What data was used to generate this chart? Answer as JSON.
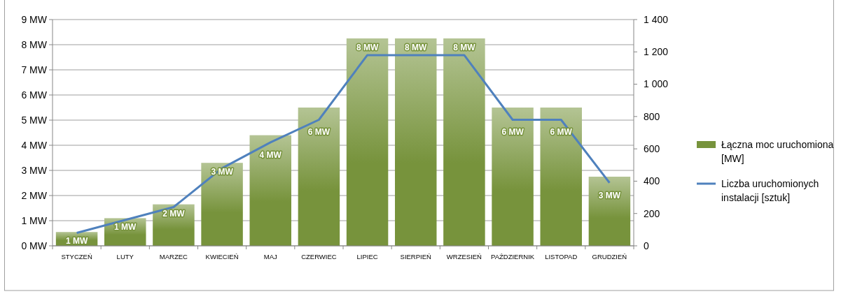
{
  "chart_data": {
    "type": "bar",
    "categories": [
      "STYCZEŃ",
      "LUTY",
      "MARZEC",
      "KWIECIEŃ",
      "MAJ",
      "CZERWIEC",
      "LIPIEC",
      "SIERPIEŃ",
      "WRZESIEŃ",
      "PAŹDZIERNIK",
      "LISTOPAD",
      "GRUDZIEŃ"
    ],
    "series": [
      {
        "name": "Łączna moc uruchomiona [MW]",
        "color": "#77933c",
        "values": [
          0.55,
          1.1,
          1.65,
          3.3,
          4.4,
          5.5,
          8.25,
          8.25,
          8.25,
          5.5,
          5.5,
          2.75
        ],
        "value_labels": [
          "1 MW",
          "1 MW",
          "2 MW",
          "3 MW",
          "4 MW",
          "6 MW",
          "8 MW",
          "8 MW",
          "8 MW",
          "6 MW",
          "6 MW",
          "3 MW"
        ]
      },
      {
        "name": "Liczba uruchomionych instalacji [sztuk]",
        "type": "line",
        "axis": "y2",
        "color": "#4f81bd",
        "values": [
          80,
          160,
          240,
          480,
          640,
          780,
          1180,
          1180,
          1180,
          780,
          780,
          390
        ]
      }
    ],
    "ylim": [
      0,
      9
    ],
    "yticks": [
      {
        "value": 0,
        "label": "0 MW"
      },
      {
        "value": 1,
        "label": "1 MW"
      },
      {
        "value": 2,
        "label": "2 MW"
      },
      {
        "value": 3,
        "label": "3 MW"
      },
      {
        "value": 4,
        "label": "4 MW"
      },
      {
        "value": 5,
        "label": "5 MW"
      },
      {
        "value": 6,
        "label": "6 MW"
      },
      {
        "value": 7,
        "label": "7 MW"
      },
      {
        "value": 8,
        "label": "8 MW"
      },
      {
        "value": 9,
        "label": "9 MW"
      }
    ],
    "y2lim": [
      0,
      1400
    ],
    "y2ticks": [
      0,
      200,
      400,
      600,
      800,
      {
        "value": 1000,
        "label": "1 000"
      },
      {
        "value": 1200,
        "label": "1 200"
      },
      {
        "value": 1400,
        "label": "1 400"
      }
    ],
    "grid": "y",
    "legend": "right",
    "marker": "none",
    "line_style": "solid"
  }
}
